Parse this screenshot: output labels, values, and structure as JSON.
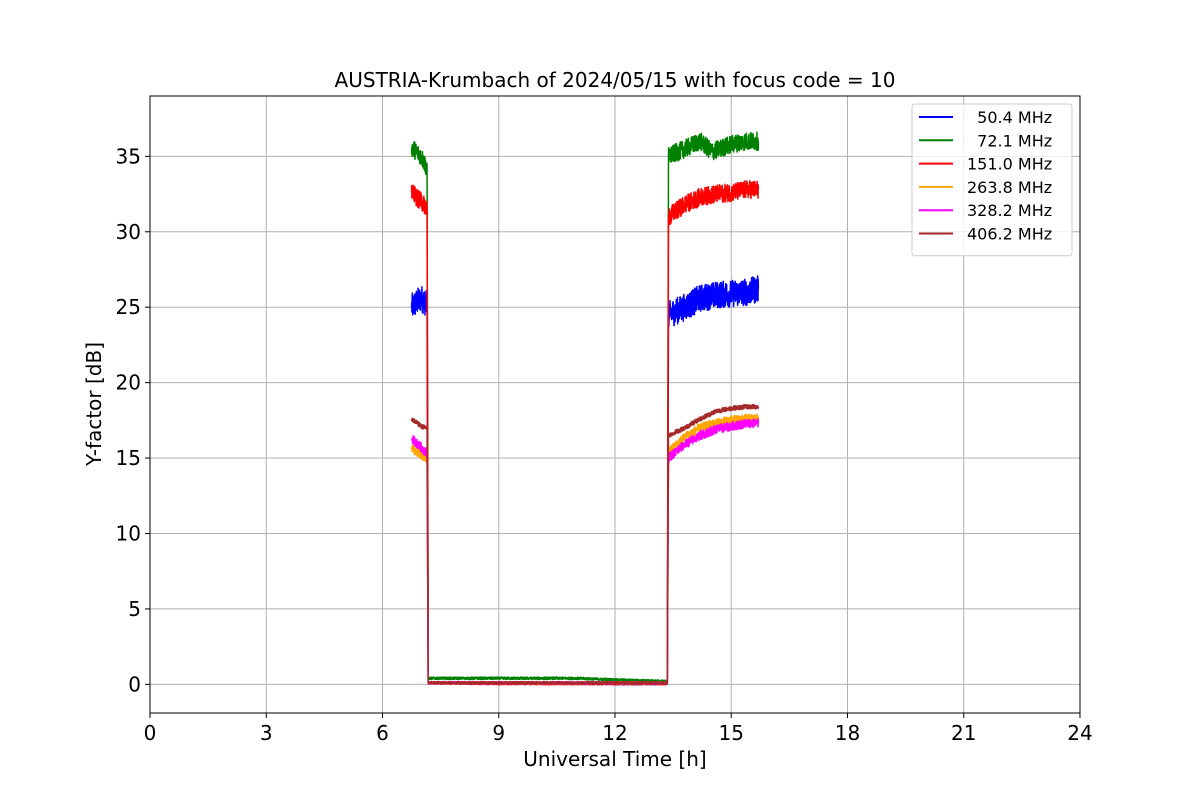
{
  "chart_data": {
    "type": "line",
    "title": "AUSTRIA-Krumbach of 2024/05/15 with focus code = 10",
    "xlabel": "Universal Time [h]",
    "ylabel": "Y-factor [dB]",
    "xlim": [
      0,
      24
    ],
    "ylim": [
      -1.9,
      39
    ],
    "xticks": [
      0,
      3,
      6,
      9,
      12,
      15,
      18,
      21,
      24
    ],
    "yticks": [
      0,
      5,
      10,
      15,
      20,
      25,
      30,
      35
    ],
    "grid": true,
    "legend_position": "top-right",
    "series": [
      {
        "name": "  50.4 MHz",
        "color": "#0000ff",
        "noise": 0.9,
        "points": [
          [
            6.75,
            25.0
          ],
          [
            7.0,
            25.6
          ],
          [
            7.15,
            25.2
          ],
          [
            7.18,
            0.1
          ],
          [
            9.0,
            0.1
          ],
          [
            12.0,
            0.05
          ],
          [
            13.35,
            0.05
          ],
          [
            13.38,
            24.5
          ],
          [
            13.8,
            25.0
          ],
          [
            14.2,
            25.6
          ],
          [
            14.6,
            25.8
          ],
          [
            15.0,
            25.9
          ],
          [
            15.4,
            26.0
          ],
          [
            15.7,
            26.2
          ]
        ]
      },
      {
        "name": "  72.1 MHz",
        "color": "#008000",
        "noise": 0.6,
        "points": [
          [
            6.75,
            35.6
          ],
          [
            7.0,
            35.0
          ],
          [
            7.15,
            34.2
          ],
          [
            7.18,
            0.4
          ],
          [
            9.0,
            0.4
          ],
          [
            11.0,
            0.4
          ],
          [
            12.0,
            0.3
          ],
          [
            13.35,
            0.2
          ],
          [
            13.38,
            35.0
          ],
          [
            13.8,
            35.5
          ],
          [
            14.2,
            36.0
          ],
          [
            14.5,
            35.3
          ],
          [
            15.0,
            35.8
          ],
          [
            15.4,
            36.0
          ],
          [
            15.7,
            36.0
          ]
        ]
      },
      {
        "name": "151.0 MHz",
        "color": "#ff0000",
        "noise": 0.6,
        "points": [
          [
            6.75,
            32.6
          ],
          [
            7.0,
            32.0
          ],
          [
            7.15,
            31.6
          ],
          [
            7.18,
            0.1
          ],
          [
            9.0,
            0.05
          ],
          [
            12.0,
            0.05
          ],
          [
            13.35,
            0.05
          ],
          [
            13.38,
            31.0
          ],
          [
            13.8,
            31.8
          ],
          [
            14.2,
            32.3
          ],
          [
            14.6,
            32.5
          ],
          [
            15.0,
            32.6
          ],
          [
            15.4,
            32.8
          ],
          [
            15.7,
            32.8
          ]
        ]
      },
      {
        "name": "263.8 MHz",
        "color": "#ffa500",
        "noise": 0.3,
        "points": [
          [
            6.75,
            15.6
          ],
          [
            7.0,
            15.2
          ],
          [
            7.15,
            15.0
          ],
          [
            7.18,
            0.1
          ],
          [
            13.35,
            0.1
          ],
          [
            13.38,
            15.4
          ],
          [
            13.8,
            16.4
          ],
          [
            14.2,
            17.0
          ],
          [
            14.6,
            17.3
          ],
          [
            15.0,
            17.5
          ],
          [
            15.4,
            17.6
          ],
          [
            15.7,
            17.6
          ]
        ]
      },
      {
        "name": "328.2 MHz",
        "color": "#ff00ff",
        "noise": 0.3,
        "points": [
          [
            6.75,
            16.3
          ],
          [
            7.0,
            15.7
          ],
          [
            7.15,
            15.3
          ],
          [
            7.18,
            0.1
          ],
          [
            13.35,
            0.1
          ],
          [
            13.38,
            15.0
          ],
          [
            13.8,
            15.9
          ],
          [
            14.2,
            16.5
          ],
          [
            14.6,
            16.9
          ],
          [
            15.0,
            17.1
          ],
          [
            15.4,
            17.3
          ],
          [
            15.7,
            17.3
          ]
        ]
      },
      {
        "name": "406.2 MHz",
        "color": "#a52a2a",
        "noise": 0.15,
        "points": [
          [
            6.75,
            17.6
          ],
          [
            7.0,
            17.1
          ],
          [
            7.15,
            17.0
          ],
          [
            7.18,
            0.1
          ],
          [
            13.35,
            0.1
          ],
          [
            13.38,
            16.5
          ],
          [
            13.8,
            17.0
          ],
          [
            14.2,
            17.6
          ],
          [
            14.6,
            18.1
          ],
          [
            15.0,
            18.3
          ],
          [
            15.4,
            18.4
          ],
          [
            15.7,
            18.4
          ]
        ]
      }
    ]
  }
}
